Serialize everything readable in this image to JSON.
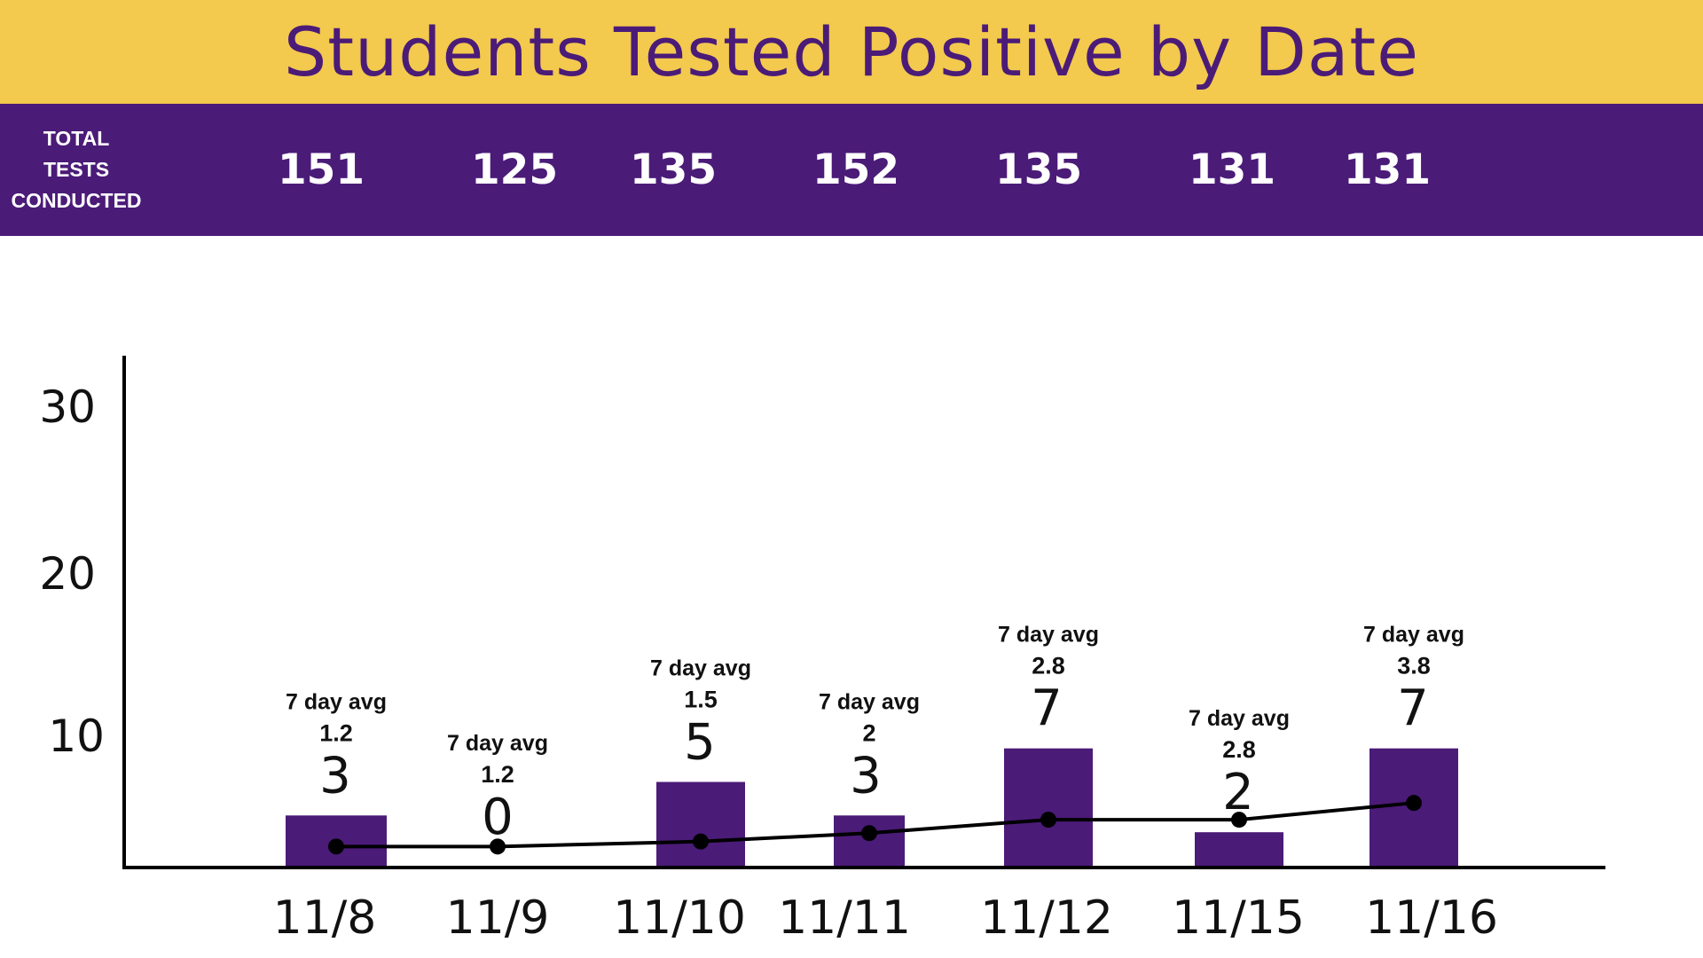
{
  "title": "Students Tested Positive by Date",
  "colors": {
    "title_bg": "#F3C94E",
    "title_text": "#4B1B78",
    "band_bg": "#4B1B78",
    "band_text": "#FFFFFF",
    "bar": "#4B1B78",
    "line": "#000000",
    "axis": "#000000"
  },
  "totals": {
    "label_lines": [
      "TOTAL",
      "TESTS",
      "CONDUCTED"
    ],
    "values": [
      "151",
      "125",
      "135",
      "152",
      "135",
      "131",
      "131"
    ]
  },
  "chart_data": {
    "type": "bar",
    "categories": [
      "11/8",
      "11/9",
      "11/10",
      "11/11",
      "11/12",
      "11/15",
      "11/16"
    ],
    "series": [
      {
        "kind": "bar",
        "values": [
          3,
          0,
          5,
          3,
          7,
          2,
          7
        ],
        "value_labels": [
          "3",
          "0",
          "5",
          "3",
          "7",
          "2",
          "7"
        ]
      },
      {
        "kind": "line",
        "values": [
          1.2,
          1.2,
          1.5,
          2,
          2.8,
          2.8,
          3.8
        ]
      }
    ],
    "avg_caption": "7 day avg",
    "avg_labels": [
      "1.2",
      "1.2",
      "1.5",
      "2",
      "2.8",
      "2.8",
      "3.8"
    ],
    "yticks": [
      "10",
      "20",
      "30"
    ],
    "ylim": [
      0,
      30
    ],
    "grid": false,
    "legend": "none"
  }
}
